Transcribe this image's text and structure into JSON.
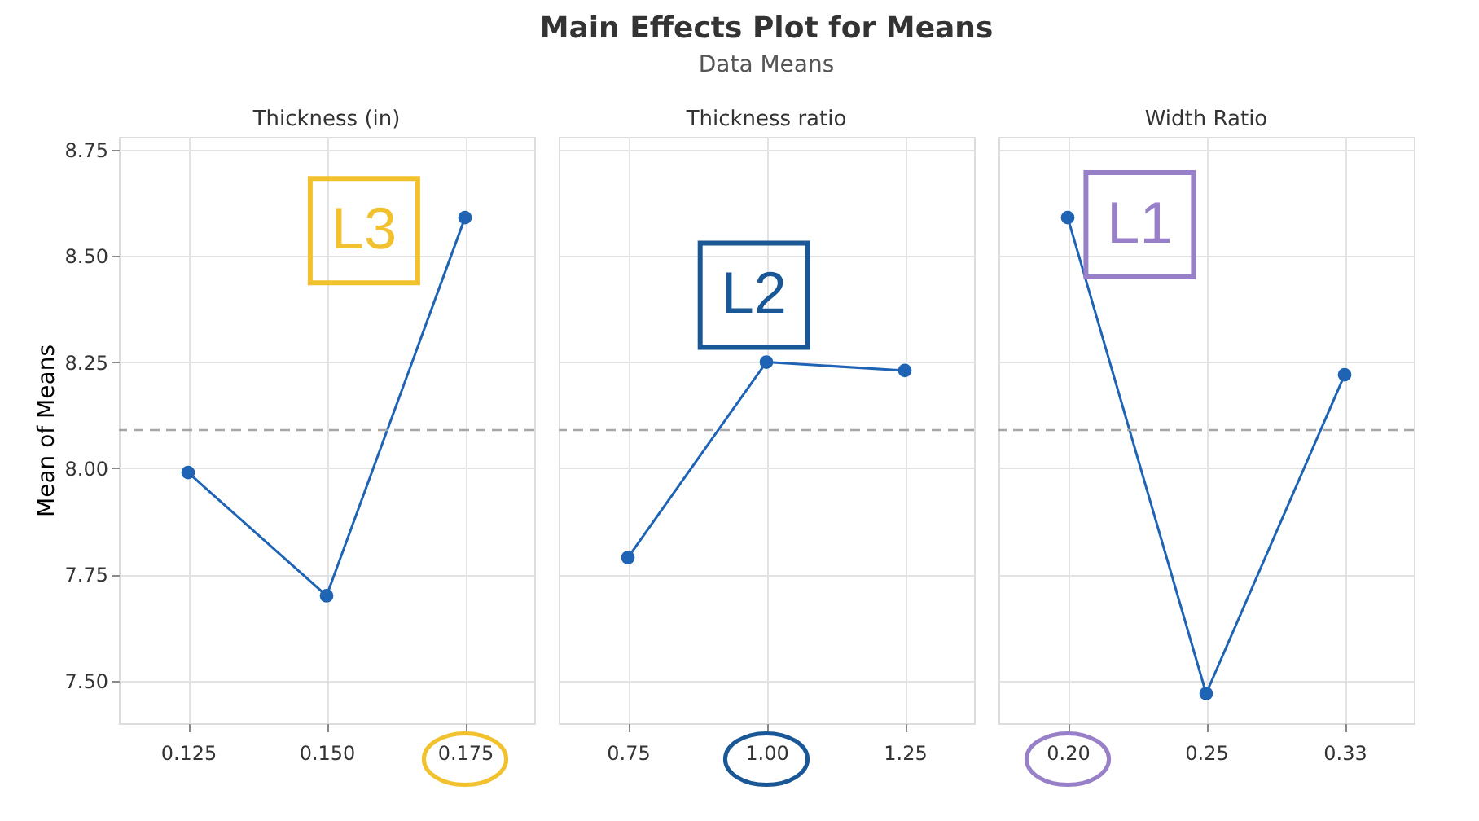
{
  "chart_data": [
    {
      "type": "line",
      "x2label": "Thickness (in)",
      "ylabel": "Mean of Means",
      "categories": [
        "0.125",
        "0.150",
        "0.175"
      ],
      "series": [
        {
          "color": "#1f64b4",
          "values": [
            7.99,
            7.7,
            8.59
          ]
        }
      ],
      "ylim": [
        7.4,
        8.78
      ],
      "yticks": [
        {
          "value": 7.5,
          "label": "7.50"
        },
        {
          "value": 7.75,
          "label": "7.75"
        },
        {
          "value": 8.0,
          "label": "8.00"
        },
        {
          "value": 8.25,
          "label": "8.25"
        },
        {
          "value": 8.5,
          "label": "8.50"
        },
        {
          "value": 8.75,
          "label": "8.75"
        }
      ],
      "ref_lines": [
        {
          "axis": "y",
          "value": 8.09,
          "line_style": "dashed",
          "color": "#a6a6a6"
        }
      ],
      "annotations": [
        "L3"
      ],
      "grid": true,
      "marker": "circle",
      "line_style": "solid"
    },
    {
      "type": "line",
      "title": "Main Effects Plot for Means",
      "subtitle": "Data Means",
      "x2label": "Thickness ratio",
      "categories": [
        "0.75",
        "1.00",
        "1.25"
      ],
      "series": [
        {
          "color": "#1f64b4",
          "values": [
            7.79,
            8.25,
            8.23
          ]
        }
      ],
      "ylim": [
        7.4,
        8.78
      ],
      "yticks": [
        7.5,
        7.75,
        8.0,
        8.25,
        8.5,
        8.75
      ],
      "ref_lines": [
        {
          "axis": "y",
          "value": 8.09,
          "line_style": "dashed",
          "color": "#a6a6a6"
        }
      ],
      "annotations": [
        "L2"
      ],
      "grid": true,
      "marker": "circle",
      "line_style": "solid",
      "tick_labels": "x"
    },
    {
      "type": "line",
      "x2label": "Width Ratio",
      "categories": [
        "0.20",
        "0.25",
        "0.33"
      ],
      "series": [
        {
          "color": "#1f64b4",
          "values": [
            8.59,
            7.47,
            8.22
          ]
        }
      ],
      "ylim": [
        7.4,
        8.78
      ],
      "yticks": [
        7.5,
        7.75,
        8.0,
        8.25,
        8.5,
        8.75
      ],
      "ref_lines": [
        {
          "axis": "y",
          "value": 8.09,
          "line_style": "dashed",
          "color": "#a6a6a6"
        }
      ],
      "annotations": [
        "L1"
      ],
      "grid": true,
      "marker": "circle",
      "line_style": "solid",
      "tick_labels": "x"
    }
  ]
}
